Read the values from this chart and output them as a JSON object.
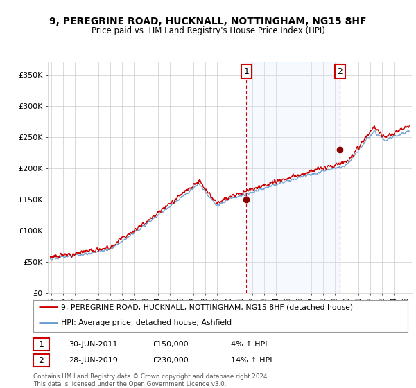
{
  "title": "9, PEREGRINE ROAD, HUCKNALL, NOTTINGHAM, NG15 8HF",
  "subtitle": "Price paid vs. HM Land Registry's House Price Index (HPI)",
  "ylabel_ticks": [
    "£0",
    "£50K",
    "£100K",
    "£150K",
    "£200K",
    "£250K",
    "£300K",
    "£350K"
  ],
  "ytick_values": [
    0,
    50000,
    100000,
    150000,
    200000,
    250000,
    300000,
    350000
  ],
  "ylim": [
    0,
    370000
  ],
  "xlim_start": 1994.7,
  "xlim_end": 2025.5,
  "xtick_years": [
    1995,
    1996,
    1997,
    1998,
    1999,
    2000,
    2001,
    2002,
    2003,
    2004,
    2005,
    2006,
    2007,
    2008,
    2009,
    2010,
    2011,
    2012,
    2013,
    2014,
    2015,
    2016,
    2017,
    2018,
    2019,
    2020,
    2021,
    2022,
    2023,
    2024,
    2025
  ],
  "purchase1_x": 2011.5,
  "purchase1_y": 150000,
  "purchase1_label": "1",
  "purchase2_x": 2019.42,
  "purchase2_y": 230000,
  "purchase2_label": "2",
  "line1_color": "#cc0000",
  "line2_color": "#6699cc",
  "shade_color": "#ddeeff",
  "marker_color": "#880000",
  "grid_color": "#cccccc",
  "bg_color": "#ffffff",
  "legend_line1": "9, PEREGRINE ROAD, HUCKNALL, NOTTINGHAM, NG15 8HF (detached house)",
  "legend_line2": "HPI: Average price, detached house, Ashfield",
  "note1_label": "1",
  "note1_date": "30-JUN-2011",
  "note1_price": "£150,000",
  "note1_hpi": "4% ↑ HPI",
  "note2_label": "2",
  "note2_date": "28-JUN-2019",
  "note2_price": "£230,000",
  "note2_hpi": "14% ↑ HPI",
  "footer": "Contains HM Land Registry data © Crown copyright and database right 2024.\nThis data is licensed under the Open Government Licence v3.0."
}
